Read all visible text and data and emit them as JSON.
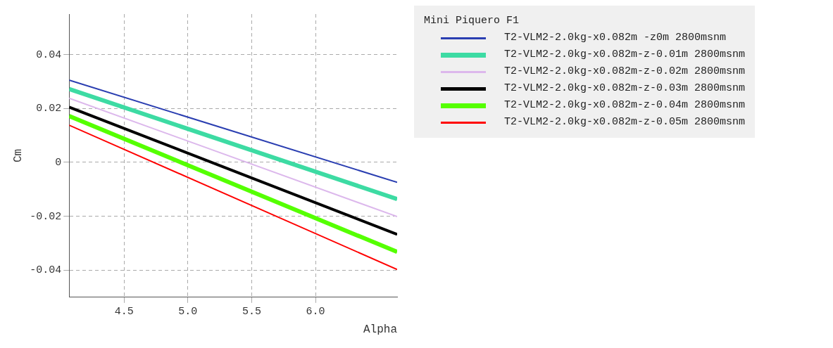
{
  "chart_data": {
    "type": "line",
    "xlabel": "Alpha",
    "ylabel": "Cm",
    "legend_title": "Mini Piquero F1",
    "legend": "right",
    "grid": true,
    "marker": "none",
    "line_style": "solid",
    "x": [
      4.07,
      6.64
    ],
    "xlim": [
      4.07,
      6.64
    ],
    "xticks": [
      {
        "value": 4.5,
        "label": "4.5"
      },
      {
        "value": 5,
        "label": "5.0"
      },
      {
        "value": 5.5,
        "label": "5.5"
      },
      {
        "value": 6,
        "label": "6.0"
      }
    ],
    "ylim": [
      -0.05,
      0.055
    ],
    "yticks": [
      -0.04,
      -0.02,
      0,
      0.02,
      0.04
    ],
    "series": [
      {
        "name": "T2-VLM2-2.0kg-x0.082m -z0m 2800msnm",
        "color": "#2a3eb1",
        "values": [
          0.0305,
          -0.0074
        ]
      },
      {
        "name": "T2-VLM2-2.0kg-x0.082m-z-0.01m 2800msnm",
        "color": "#3ddba3",
        "values": [
          0.0272,
          -0.0136
        ]
      },
      {
        "name": "T2-VLM2-2.0kg-x0.082m-z-0.02m 2800msnm",
        "color": "#dcb8ec",
        "values": [
          0.0238,
          -0.0201
        ]
      },
      {
        "name": "T2-VLM2-2.0kg-x0.082m-z-0.03m 2800msnm",
        "color": "#000000",
        "values": [
          0.0205,
          -0.0267
        ]
      },
      {
        "name": "T2-VLM2-2.0kg-x0.082m-z-0.04m 2800msnm",
        "color": "#55ff00",
        "values": [
          0.0172,
          -0.0332
        ]
      },
      {
        "name": "T2-VLM2-2.0kg-x0.082m-z-0.05m 2800msnm",
        "color": "#ff0000",
        "values": [
          0.0138,
          -0.0397
        ]
      }
    ]
  }
}
